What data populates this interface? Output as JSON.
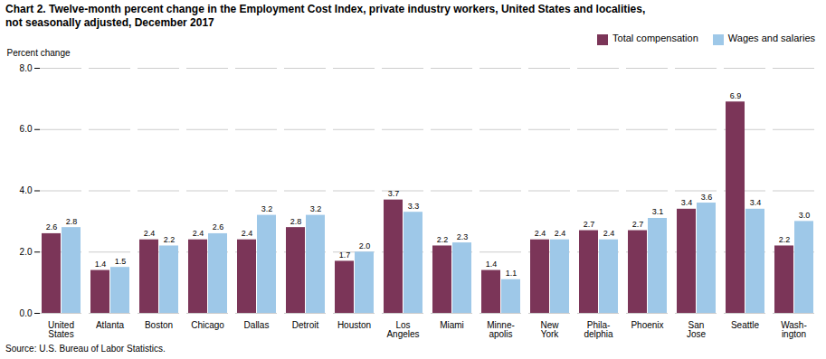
{
  "chart_data": {
    "type": "bar",
    "title": "Chart 2. Twelve-month percent change in the Employment Cost Index, private industry workers, United States and localities,\nnot seasonally adjusted, December 2017",
    "ylabel": "Percent change",
    "source": "Source: U.S. Bureau of Labor Statistics.",
    "categories": [
      "United\nStates",
      "Atlanta",
      "Boston",
      "Chicago",
      "Dallas",
      "Detroit",
      "Houston",
      "Los\nAngeles",
      "Miami",
      "Minne-\napolis",
      "New\nYork",
      "Phila-\ndelphia",
      "Phoenix",
      "San\nJose",
      "Seattle",
      "Wash-\nington"
    ],
    "series": [
      {
        "name": "Total compensation",
        "color": "#7B3558",
        "values": [
          2.6,
          1.4,
          2.4,
          2.4,
          2.4,
          2.8,
          1.7,
          3.7,
          2.2,
          1.4,
          2.4,
          2.7,
          2.7,
          3.4,
          6.9,
          2.2
        ],
        "value_labels": [
          "2.6",
          "1.4",
          "2.4",
          "2.4",
          "2.4",
          "2.8",
          "1.7",
          "3.7",
          "2.2",
          "1.4",
          "2.4",
          "2.7",
          "2.7",
          "3.4",
          "6.9",
          "2.2"
        ]
      },
      {
        "name": "Wages and salaries",
        "color": "#9EC8E8",
        "values": [
          2.8,
          1.5,
          2.2,
          2.6,
          3.2,
          3.2,
          2.0,
          3.3,
          2.3,
          1.1,
          2.4,
          2.4,
          3.1,
          3.6,
          3.4,
          3.0
        ],
        "value_labels": [
          "2.8",
          "1.5",
          "2.2",
          "2.6",
          "3.2",
          "3.2",
          "2.0",
          "3.3",
          "2.3",
          "1.1",
          "2.4",
          "2.4",
          "3.1",
          "3.6",
          "3.4",
          "3.0"
        ]
      }
    ],
    "ylim": [
      0.0,
      8.0
    ],
    "yticks": [
      {
        "value": 0,
        "label": "0.0"
      },
      {
        "value": 2,
        "label": "2.0"
      },
      {
        "value": 4,
        "label": "4.0"
      },
      {
        "value": 6,
        "label": "6.0"
      },
      {
        "value": 8,
        "label": "8.0"
      }
    ],
    "grid": true,
    "legend": "upper right",
    "data_labels": true
  }
}
